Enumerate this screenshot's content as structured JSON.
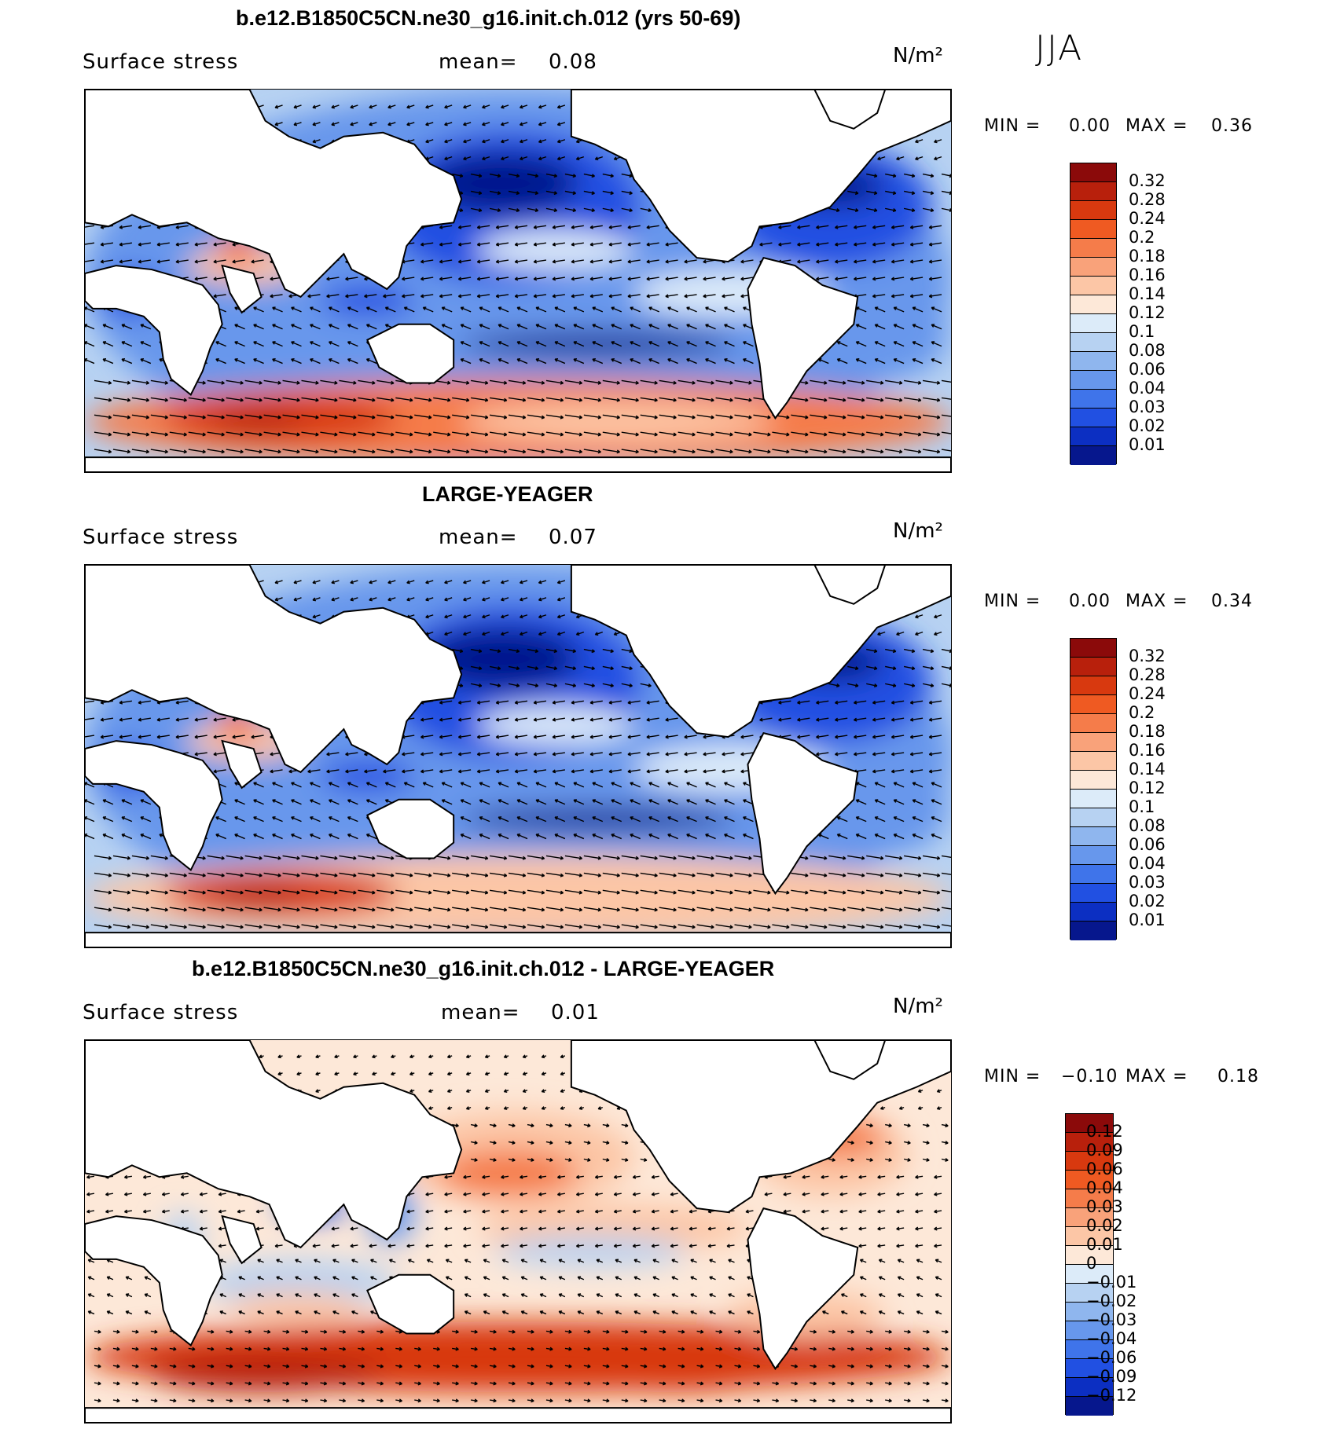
{
  "season": "JJA",
  "panels": [
    {
      "title": "b.e12.B1850C5CN.ne30_g16.init.ch.012 (yrs 50-69)",
      "variable": "Surface stress",
      "mean_label": "mean=",
      "mean_value": "0.08",
      "units": "N/m²",
      "min_label": "MIN =",
      "min_value": "0.00",
      "max_label": "MAX =",
      "max_value": "0.36",
      "colorbar": {
        "ticks": [
          "0.32",
          "0.28",
          "0.24",
          "0.2",
          "0.18",
          "0.16",
          "0.14",
          "0.12",
          "0.1",
          "0.08",
          "0.06",
          "0.04",
          "0.03",
          "0.02",
          "0.01"
        ],
        "colors": [
          "#8b0a0a",
          "#b8200c",
          "#d8390f",
          "#ef5a22",
          "#f57c4a",
          "#f9a27a",
          "#fcc6a6",
          "#fde8d8",
          "#dcebf9",
          "#b7d2f2",
          "#8fb6ee",
          "#6797ec",
          "#3f74ea",
          "#2150e2",
          "#0c2fc2",
          "#06178d"
        ]
      }
    },
    {
      "title": "LARGE-YEAGER",
      "variable": "Surface stress",
      "mean_label": "mean=",
      "mean_value": "0.07",
      "units": "N/m²",
      "min_label": "MIN =",
      "min_value": "0.00",
      "max_label": "MAX =",
      "max_value": "0.34",
      "colorbar": {
        "ticks": [
          "0.32",
          "0.28",
          "0.24",
          "0.2",
          "0.18",
          "0.16",
          "0.14",
          "0.12",
          "0.1",
          "0.08",
          "0.06",
          "0.04",
          "0.03",
          "0.02",
          "0.01"
        ],
        "colors": [
          "#8b0a0a",
          "#b8200c",
          "#d8390f",
          "#ef5a22",
          "#f57c4a",
          "#f9a27a",
          "#fcc6a6",
          "#fde8d8",
          "#dcebf9",
          "#b7d2f2",
          "#8fb6ee",
          "#6797ec",
          "#3f74ea",
          "#2150e2",
          "#0c2fc2",
          "#06178d"
        ]
      }
    },
    {
      "title": "b.e12.B1850C5CN.ne30_g16.init.ch.012 - LARGE-YEAGER",
      "variable": "Surface stress",
      "mean_label": "mean=",
      "mean_value": "0.01",
      "units": "N/m²",
      "min_label": "MIN =",
      "min_value": "−0.10",
      "max_label": "MAX =",
      "max_value": "0.18",
      "colorbar": {
        "ticks": [
          "0.12",
          "0.09",
          "0.06",
          "0.04",
          "0.03",
          "0.02",
          "0.01",
          "0",
          "−0.01",
          "−0.02",
          "−0.03",
          "−0.04",
          "−0.06",
          "−0.09",
          "−0.12"
        ],
        "colors": [
          "#8b0a0a",
          "#b8200c",
          "#d8390f",
          "#ef5a22",
          "#f57c4a",
          "#f9a27a",
          "#fcc6a6",
          "#fde8d8",
          "#dcebf9",
          "#b7d2f2",
          "#8fb6ee",
          "#6797ec",
          "#3f74ea",
          "#2150e2",
          "#0c2fc2",
          "#06178d"
        ]
      }
    }
  ]
}
